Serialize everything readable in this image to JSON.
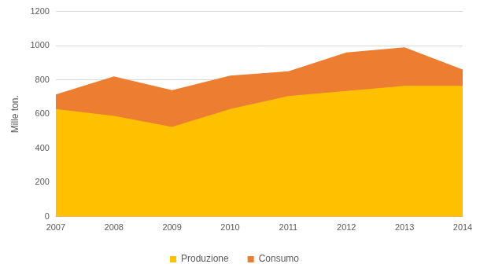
{
  "chart_data": {
    "type": "area",
    "y_label": "Mille ton.",
    "categories": [
      "2007",
      "2008",
      "2009",
      "2010",
      "2011",
      "2012",
      "2013",
      "2014"
    ],
    "series": [
      {
        "name": "Consumo",
        "color": "#ed7d31",
        "values": [
          715,
          820,
          740,
          825,
          850,
          960,
          990,
          860
        ]
      },
      {
        "name": "Produzione",
        "color": "#ffc000",
        "values": [
          630,
          590,
          525,
          630,
          705,
          735,
          765,
          765
        ]
      }
    ],
    "ylim": [
      0,
      1200
    ],
    "yticks": [
      0,
      200,
      400,
      600,
      800,
      1000,
      1200
    ],
    "grid": true,
    "legend": "bottom",
    "stacked": false
  }
}
